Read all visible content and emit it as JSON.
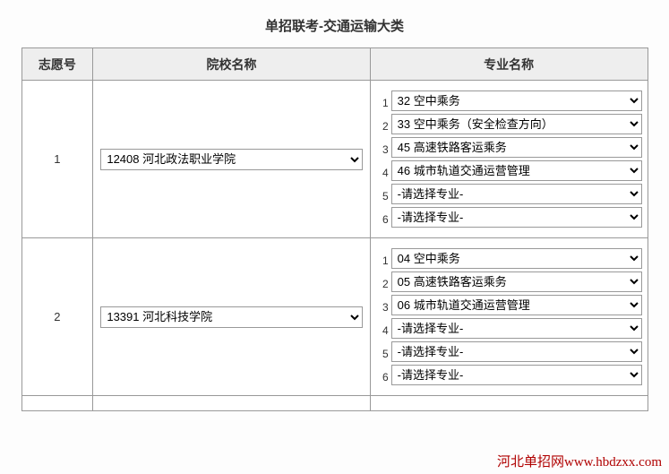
{
  "title": "单招联考-交通运输大类",
  "headers": {
    "num": "志愿号",
    "school": "院校名称",
    "major": "专业名称"
  },
  "placeholder_major": "-请选择专业-",
  "rows": [
    {
      "num": "1",
      "school": "12408 河北政法职业学院",
      "majors": [
        "32 空中乘务",
        "33 空中乘务（安全检查方向）",
        "45 高速铁路客运乘务",
        "46 城市轨道交通运营管理",
        "-请选择专业-",
        "-请选择专业-"
      ]
    },
    {
      "num": "2",
      "school": "13391 河北科技学院",
      "majors": [
        "04 空中乘务",
        "05 高速铁路客运乘务",
        "06 城市轨道交通运营管理",
        "-请选择专业-",
        "-请选择专业-",
        "-请选择专业-"
      ]
    }
  ],
  "watermark": "河北单招网www.hbdzxx.com"
}
